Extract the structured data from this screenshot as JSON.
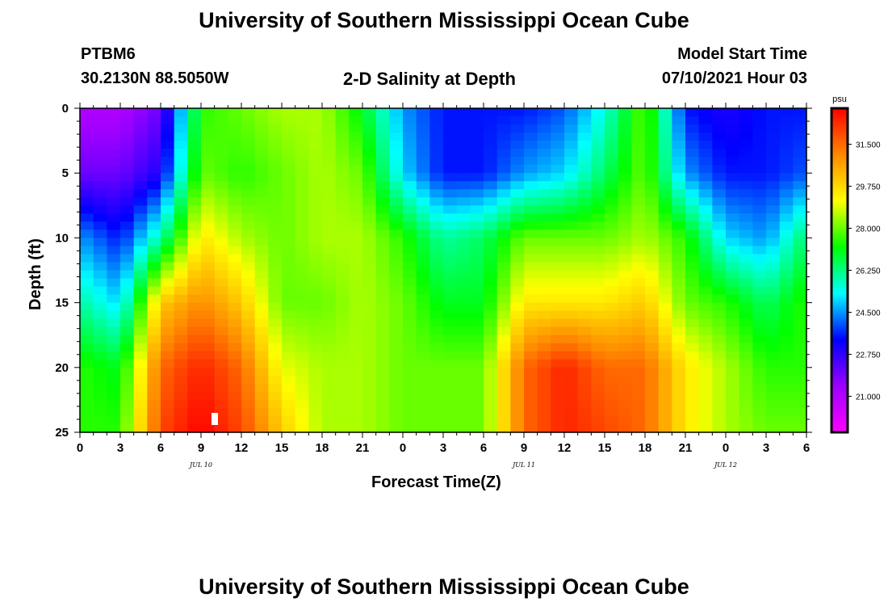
{
  "header": {
    "title": "University of Southern Mississippi Ocean Cube",
    "station": "PTBM6",
    "coords": "30.2130N  88.5050W",
    "plot_title": "2-D Salinity at Depth",
    "model_label": "Model Start Time",
    "model_time": "07/10/2021 Hour 03"
  },
  "footer": {
    "title": "University of Southern Mississippi Ocean Cube"
  },
  "chart_data": {
    "type": "heatmap",
    "title": "2-D Salinity at Depth",
    "xlabel": "Forecast Time(Z)",
    "ylabel": "Depth (ft)",
    "x_ticks": [
      "0",
      "3",
      "6",
      "9",
      "12",
      "15",
      "18",
      "21",
      "0",
      "3",
      "6",
      "9",
      "12",
      "15",
      "18",
      "21",
      "0",
      "3",
      "6"
    ],
    "date_labels": [
      {
        "label": "JUL 10",
        "hour": 9
      },
      {
        "label": "JUL 11",
        "hour": 33
      },
      {
        "label": "JUL 12",
        "hour": 48
      }
    ],
    "xlim_hours": [
      0,
      54
    ],
    "y_ticks": [
      0,
      5,
      10,
      15,
      20,
      25
    ],
    "ylim": [
      0,
      25
    ],
    "y_inverted": true,
    "colorbar": {
      "unit": "psu",
      "ticks": [
        "31.500",
        "29.750",
        "28.000",
        "26.250",
        "24.500",
        "22.750",
        "21.000"
      ],
      "range": [
        19.5,
        33.0
      ],
      "colors": [
        "#ff00ff",
        "#9b00ff",
        "#0000ff",
        "#00ffff",
        "#00ff00",
        "#ffff00",
        "#ff8800",
        "#ff0000"
      ]
    },
    "salinity_grid": {
      "description_hours": [
        0,
        3,
        6,
        9,
        12,
        15,
        18,
        21,
        24,
        27,
        30,
        33,
        36,
        39,
        42,
        45,
        48,
        51,
        54
      ],
      "depths": [
        0,
        5,
        10,
        15,
        20,
        25
      ],
      "values": [
        [
          21.0,
          21.0,
          22.0,
          27.5,
          28.0,
          28.5,
          28.5,
          27.0,
          24.5,
          23.5,
          23.5,
          23.5,
          24.0,
          25.5,
          28.0,
          23.5,
          23.0,
          23.5,
          23.5
        ],
        [
          22.0,
          22.0,
          23.0,
          28.0,
          27.5,
          28.0,
          28.5,
          28.0,
          25.0,
          23.5,
          23.5,
          24.5,
          25.0,
          26.5,
          28.0,
          24.5,
          23.5,
          23.5,
          24.0
        ],
        [
          24.5,
          23.5,
          26.0,
          29.5,
          28.5,
          28.0,
          28.5,
          28.5,
          27.5,
          26.0,
          26.5,
          28.0,
          28.0,
          28.0,
          28.5,
          27.5,
          25.0,
          24.5,
          26.5
        ],
        [
          26.0,
          25.0,
          30.0,
          31.0,
          30.0,
          28.0,
          28.0,
          28.5,
          28.0,
          27.0,
          27.0,
          29.5,
          29.5,
          29.5,
          30.0,
          28.0,
          27.5,
          26.5,
          27.5
        ],
        [
          27.5,
          27.0,
          31.5,
          32.5,
          31.5,
          29.0,
          28.5,
          28.5,
          28.0,
          28.0,
          28.0,
          31.5,
          32.5,
          31.5,
          31.5,
          29.5,
          28.5,
          27.5,
          27.5
        ],
        [
          27.5,
          27.5,
          32.0,
          33.0,
          32.0,
          30.0,
          28.5,
          28.5,
          28.0,
          28.0,
          28.0,
          31.5,
          32.5,
          32.0,
          31.5,
          29.5,
          28.5,
          28.0,
          28.0
        ]
      ]
    }
  }
}
